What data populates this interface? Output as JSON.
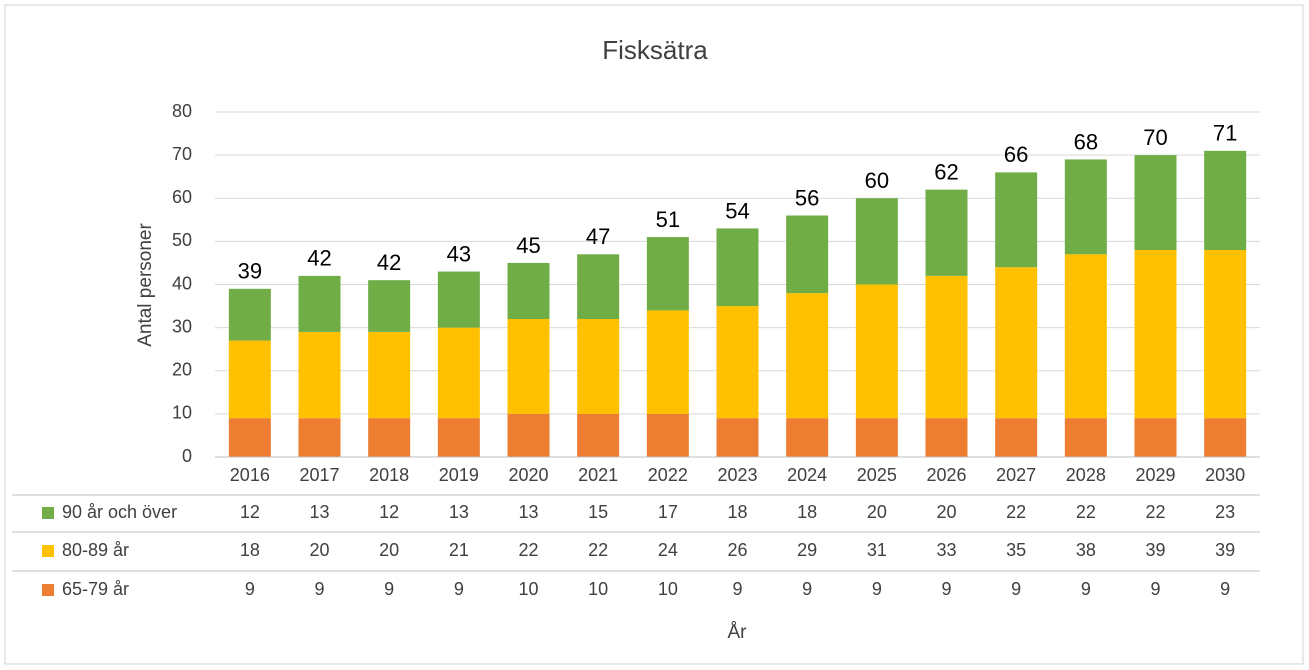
{
  "chart_data": {
    "type": "stacked_bar",
    "title": "Fisksätra",
    "x_label": "År",
    "y_label": "Antal personer",
    "categories": [
      "2016",
      "2017",
      "2018",
      "2019",
      "2020",
      "2021",
      "2022",
      "2023",
      "2024",
      "2025",
      "2026",
      "2027",
      "2028",
      "2029",
      "2030"
    ],
    "series": [
      {
        "name": "65-79 år",
        "color": "#ed7d31",
        "values": [
          9,
          9,
          9,
          9,
          10,
          10,
          10,
          9,
          9,
          9,
          9,
          9,
          9,
          9,
          9
        ]
      },
      {
        "name": "80-89 år",
        "color": "#ffc000",
        "values": [
          18,
          20,
          20,
          21,
          22,
          22,
          24,
          26,
          29,
          31,
          33,
          35,
          38,
          39,
          39
        ]
      },
      {
        "name": "90 år och över",
        "color": "#70ad47",
        "values": [
          12,
          13,
          12,
          13,
          13,
          15,
          17,
          18,
          18,
          20,
          20,
          22,
          22,
          22,
          23
        ]
      }
    ],
    "totals": [
      39,
      42,
      42,
      43,
      45,
      47,
      51,
      54,
      56,
      60,
      62,
      66,
      68,
      70,
      71
    ],
    "ylim": [
      0,
      80
    ],
    "yticks": [
      0,
      10,
      20,
      30,
      40,
      50,
      60,
      70,
      80
    ],
    "grid": true
  }
}
